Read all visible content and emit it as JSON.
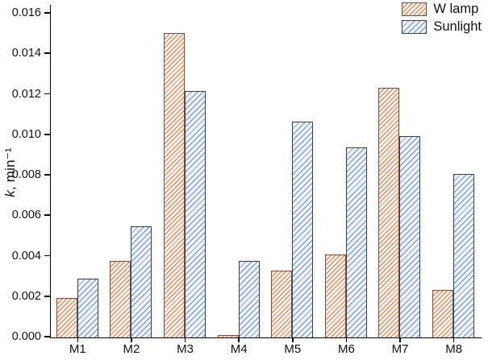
{
  "chart_data": {
    "type": "bar",
    "title": "",
    "xlabel": "",
    "ylabel": "k, min⁻¹",
    "ylabel_italic": "k",
    "ylabel_rest": ", min⁻¹",
    "categories": [
      "M1",
      "M2",
      "M3",
      "M4",
      "M5",
      "M6",
      "M7",
      "M8"
    ],
    "series": [
      {
        "name": "W lamp",
        "values": [
          0.00197,
          0.0038,
          0.01505,
          0.00012,
          0.0033,
          0.0041,
          0.01235,
          0.00235
        ],
        "fill": "#fbeee4",
        "hatch": "#c5805c",
        "edge": "#8a4a33",
        "hatch_spacing": 4
      },
      {
        "name": "Sunlight",
        "values": [
          0.0029,
          0.0055,
          0.0122,
          0.0038,
          0.01065,
          0.0094,
          0.00995,
          0.0081
        ],
        "fill": "#edf2fa",
        "hatch": "#6c8cc0",
        "edge": "#32415f",
        "hatch_spacing": 5
      }
    ],
    "ylim": [
      0,
      0.0164
    ],
    "yticks": [
      0.0,
      0.002,
      0.004,
      0.006,
      0.008,
      0.01,
      0.012,
      0.014,
      0.016
    ],
    "ytick_decimals": 3,
    "grid": false,
    "legend_position": "top-right",
    "axis_color": "#000000"
  }
}
